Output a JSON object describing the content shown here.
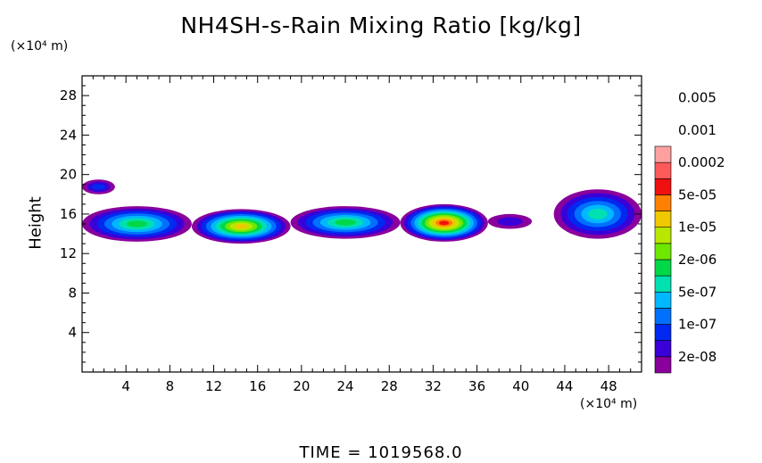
{
  "title": "NH4SH-s-Rain Mixing Ratio [kg/kg]",
  "time_label": "TIME  =  1019568.0",
  "colors": {
    "frame": "#000000",
    "levels": [
      "#8a009c",
      "#3a00d8",
      "#0028f0",
      "#0070ff",
      "#00b8ff",
      "#00e0b0",
      "#00d848",
      "#6ee800",
      "#b8e800",
      "#f0c800",
      "#ff8000",
      "#f01010",
      "#ff5a5a",
      "#ffa0a0"
    ]
  },
  "chart_data": {
    "type": "heatmap",
    "title": "NH4SH-s-Rain Mixing Ratio [kg/kg]",
    "ylabel": "Height",
    "x_unit": "(×10⁴ m)",
    "y_unit": "(×10⁴ m)",
    "xlim": [
      0,
      51
    ],
    "ylim": [
      0,
      30
    ],
    "x_ticks": [
      4,
      8,
      12,
      16,
      20,
      24,
      28,
      32,
      36,
      40,
      44,
      48
    ],
    "y_ticks": [
      4,
      8,
      12,
      16,
      20,
      24,
      28
    ],
    "colorbar_labels": [
      "2e-08",
      "1e-07",
      "5e-07",
      "2e-06",
      "1e-05",
      "5e-05",
      "0.0002",
      "0.001",
      "0.005"
    ],
    "regions": [
      {
        "x": [
          0,
          3
        ],
        "y": [
          18.0,
          19.5
        ],
        "peak_level": 2
      },
      {
        "x": [
          0,
          10
        ],
        "y": [
          13.2,
          16.8
        ],
        "peak_level": 6
      },
      {
        "x": [
          10,
          19
        ],
        "y": [
          13.0,
          16.5
        ],
        "peak_level": 9
      },
      {
        "x": [
          19,
          29
        ],
        "y": [
          13.5,
          16.8
        ],
        "peak_level": 6
      },
      {
        "x": [
          29,
          37
        ],
        "y": [
          13.2,
          17.0
        ],
        "peak_level": 11
      },
      {
        "x": [
          37,
          41
        ],
        "y": [
          14.5,
          16.0
        ],
        "peak_level": 1
      },
      {
        "x": [
          43,
          51
        ],
        "y": [
          13.5,
          18.5
        ],
        "peak_level": 5
      }
    ]
  }
}
